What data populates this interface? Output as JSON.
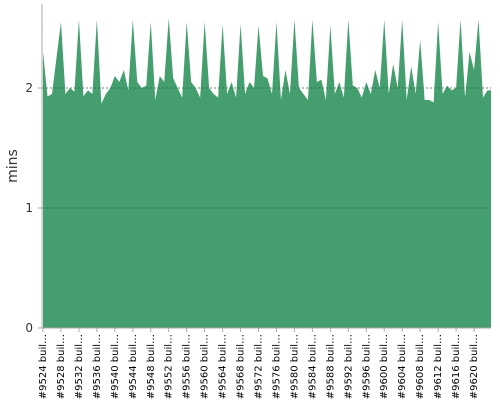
{
  "chart_data": {
    "type": "area",
    "y_label": "mins",
    "color": "#459e6e",
    "ylim": [
      0,
      2.7
    ],
    "yticks": [
      0,
      1,
      2
    ],
    "grid": true,
    "categories": [
      "#9524 buil…",
      null,
      null,
      null,
      "#9528 buil…",
      null,
      null,
      null,
      "#9532 buil…",
      null,
      null,
      null,
      "#9536 buil…",
      null,
      null,
      null,
      "#9540 buil…",
      null,
      null,
      null,
      "#9544 buil…",
      null,
      null,
      null,
      "#9548 buil…",
      null,
      null,
      null,
      "#9552 buil…",
      null,
      null,
      null,
      "#9556 buil…",
      null,
      null,
      null,
      "#9560 buil…",
      null,
      null,
      null,
      "#9564 buil…",
      null,
      null,
      null,
      "#9568 buil…",
      null,
      null,
      null,
      "#9572 buil…",
      null,
      null,
      null,
      "#9576 buil…",
      null,
      null,
      null,
      "#9580 buil…",
      null,
      null,
      null,
      "#9584 buil…",
      null,
      null,
      null,
      "#9588 buil…",
      null,
      null,
      null,
      "#9592 buil…",
      null,
      null,
      null,
      "#9596 buil…",
      null,
      null,
      null,
      "#9600 buil…",
      null,
      null,
      null,
      "#9604 buil…",
      null,
      null,
      null,
      "#9608 buil…",
      null,
      null,
      null,
      "#9612 buil…",
      null,
      null,
      null,
      "#9616 buil…",
      null,
      null,
      null,
      "#9620 buil…",
      null,
      null,
      null
    ],
    "values": [
      2.3,
      1.93,
      1.95,
      2.25,
      2.55,
      1.95,
      2.0,
      1.97,
      2.57,
      1.93,
      1.98,
      1.95,
      2.57,
      1.87,
      1.95,
      2.0,
      2.1,
      2.05,
      2.15,
      1.98,
      2.57,
      2.05,
      2.0,
      2.02,
      2.55,
      1.9,
      2.1,
      2.05,
      2.58,
      2.08,
      2.0,
      1.92,
      2.55,
      2.05,
      2.0,
      1.92,
      2.55,
      2.0,
      1.95,
      1.92,
      2.53,
      1.95,
      2.05,
      1.92,
      2.53,
      1.95,
      2.05,
      2.0,
      2.52,
      2.1,
      2.08,
      1.95,
      2.55,
      1.9,
      2.15,
      1.95,
      2.57,
      2.0,
      1.95,
      1.9,
      2.57,
      2.05,
      2.07,
      1.9,
      2.52,
      1.95,
      2.05,
      1.92,
      2.57,
      2.02,
      2.0,
      1.92,
      2.05,
      1.95,
      2.15,
      2.0,
      2.57,
      1.95,
      2.2,
      2.0,
      2.57,
      1.9,
      2.18,
      1.95,
      2.4,
      1.9,
      1.9,
      1.88,
      2.55,
      1.95,
      2.02,
      1.98,
      2.0,
      2.57,
      1.92,
      2.3,
      2.15,
      2.57,
      1.92,
      1.98
    ]
  }
}
